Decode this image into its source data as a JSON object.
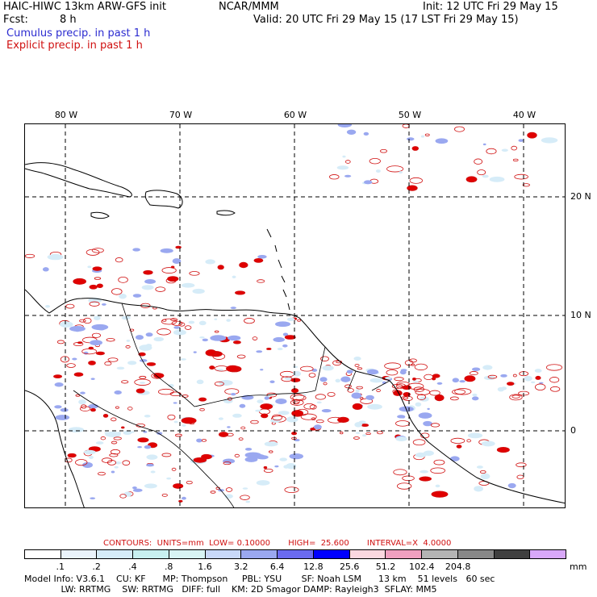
{
  "header": {
    "model_title": "HAIC-HIWC 13km ARW-GFS init",
    "org": "NCAR/MMM",
    "init": "Init: 12 UTC Fri 29 May 15",
    "fcst_label": "Fcst:",
    "fcst_value": "8 h",
    "valid": "Valid: 20 UTC Fri 29 May 15 (17 LST Fri 29 May 15)",
    "cumulus": "Cumulus precip. in past 1 h",
    "explicit": "Explicit precip. in past 1 h"
  },
  "map": {
    "lon_labels": [
      "80 W",
      "70 W",
      "60 W",
      "50 W",
      "40 W"
    ],
    "lat_labels": [
      "20 N",
      "10 N",
      "0"
    ]
  },
  "contours": {
    "text": "CONTOURS:  UNITS=mm  LOW= 0.10000       HIGH=  25.600       INTERVAL=X  4.0000"
  },
  "colorbar": {
    "colors": [
      "#ffffff",
      "#eaf3fb",
      "#d6ecf8",
      "#c8f0f0",
      "#d8f4f4",
      "#c8d8f8",
      "#9aa8f0",
      "#6a6af0",
      "#0000ff",
      "#fbd8e0",
      "#f0a0c0",
      "#b4b4b4",
      "#888888",
      "#404040",
      "#d8a8f8"
    ],
    "ticks": [
      ".1",
      ".2",
      ".4",
      ".8",
      "1.6",
      "3.2",
      "6.4",
      "12.8",
      "25.6",
      "51.2",
      "102.4",
      "204.8"
    ],
    "unit": "mm"
  },
  "model_info": {
    "line1": "Model Info: V3.6.1    CU: KF      MP: Thompson     PBL: YSU       SF: Noah LSM      13 km    51 levels   60 sec",
    "line2": "             LW: RRTMG    SW: RRTMG   DIFF: full    KM: 2D Smagor DAMP: Rayleigh3  SFLAY: MM5"
  }
}
